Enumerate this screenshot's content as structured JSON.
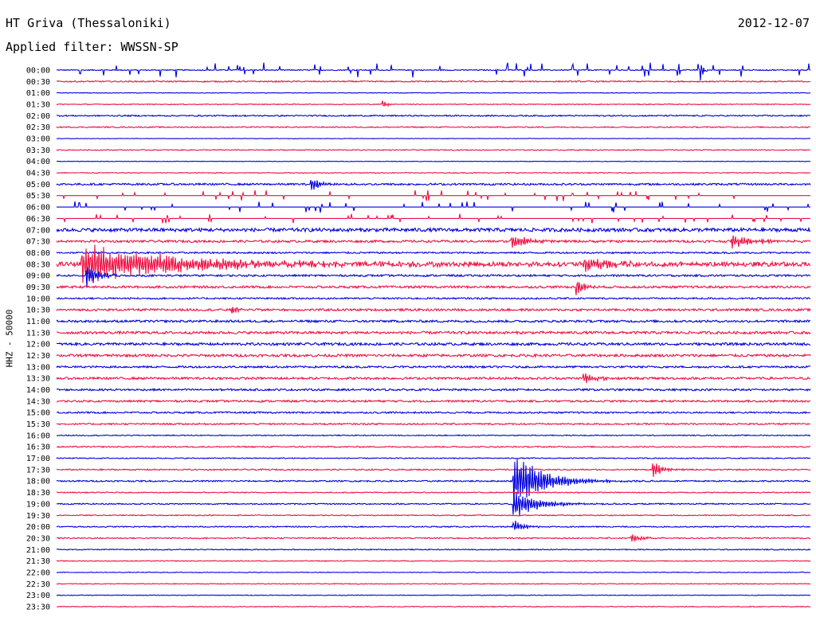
{
  "header": {
    "station": "HT Griva (Thessaloniki)",
    "date": "2012-12-07",
    "filter": "Applied filter: WWSSN-SP"
  },
  "colors": {
    "even_trace": "#0000dd",
    "odd_trace": "#ee1144",
    "text": "#000000"
  },
  "chart_data": {
    "type": "line",
    "ylabel": "HHZ - 50000",
    "row_labels": [
      "00:00",
      "00:30",
      "01:00",
      "01:30",
      "02:00",
      "02:30",
      "03:00",
      "03:30",
      "04:00",
      "04:30",
      "05:00",
      "05:30",
      "06:00",
      "06:30",
      "07:00",
      "07:30",
      "08:00",
      "08:30",
      "09:00",
      "09:30",
      "10:00",
      "10:30",
      "11:00",
      "11:30",
      "12:00",
      "12:30",
      "13:00",
      "13:30",
      "14:00",
      "14:30",
      "15:00",
      "15:30",
      "16:00",
      "16:30",
      "17:00",
      "17:30",
      "18:00",
      "18:30",
      "19:00",
      "19:30",
      "20:00",
      "20:30",
      "21:00",
      "21:30",
      "22:00",
      "22:30",
      "23:00",
      "23:30"
    ],
    "row_minutes": 30,
    "noise_level": [
      0.6,
      0.8,
      0.3,
      0.5,
      0.8,
      0.7,
      0.3,
      0.6,
      0.3,
      0.5,
      1.2,
      0,
      0,
      0,
      2.2,
      1.4,
      1.0,
      2.8,
      1.2,
      1.4,
      1.0,
      1.4,
      1.4,
      1.6,
      1.6,
      1.6,
      1.2,
      1.4,
      1.2,
      1.2,
      1.0,
      1.0,
      0.6,
      0.8,
      0.6,
      0.8,
      0.9,
      0.6,
      0.8,
      0.6,
      0.7,
      0.8,
      0.6,
      0.5,
      0.4,
      0.5,
      0.4,
      0.5
    ],
    "events": [
      {
        "row": 0,
        "minute": 25.6,
        "amplitude": 16,
        "duration_min": 0.3
      },
      {
        "row": 3,
        "minute": 13.0,
        "amplitude": 6,
        "duration_min": 0.4
      },
      {
        "row": 10,
        "minute": 10.1,
        "amplitude": 10,
        "duration_min": 0.8
      },
      {
        "row": 15,
        "minute": 18.1,
        "amplitude": 10,
        "duration_min": 1.5
      },
      {
        "row": 15,
        "minute": 26.9,
        "amplitude": 9,
        "duration_min": 2.0
      },
      {
        "row": 17,
        "minute": 1.0,
        "amplitude": 26,
        "duration_min": 9.0
      },
      {
        "row": 17,
        "minute": 21.0,
        "amplitude": 10,
        "duration_min": 2.5
      },
      {
        "row": 18,
        "minute": 1.2,
        "amplitude": 16,
        "duration_min": 1.0
      },
      {
        "row": 19,
        "minute": 20.7,
        "amplitude": 16,
        "duration_min": 0.5
      },
      {
        "row": 21,
        "minute": 7.0,
        "amplitude": 7,
        "duration_min": 0.5
      },
      {
        "row": 27,
        "minute": 21.0,
        "amplitude": 8,
        "duration_min": 1.0
      },
      {
        "row": 35,
        "minute": 23.7,
        "amplitude": 14,
        "duration_min": 0.8
      },
      {
        "row": 36,
        "minute": 18.2,
        "amplitude": 38,
        "duration_min": 2.5
      },
      {
        "row": 38,
        "minute": 18.2,
        "amplitude": 20,
        "duration_min": 2.0
      },
      {
        "row": 40,
        "minute": 18.2,
        "amplitude": 9,
        "duration_min": 1.0
      },
      {
        "row": 41,
        "minute": 22.9,
        "amplitude": 7,
        "duration_min": 0.8
      }
    ],
    "spike_rows": [
      {
        "row": 0,
        "spike_amplitude": 9
      },
      {
        "row": 11,
        "spike_amplitude": 7
      },
      {
        "row": 12,
        "spike_amplitude": 7
      },
      {
        "row": 13,
        "spike_amplitude": 6
      }
    ]
  }
}
